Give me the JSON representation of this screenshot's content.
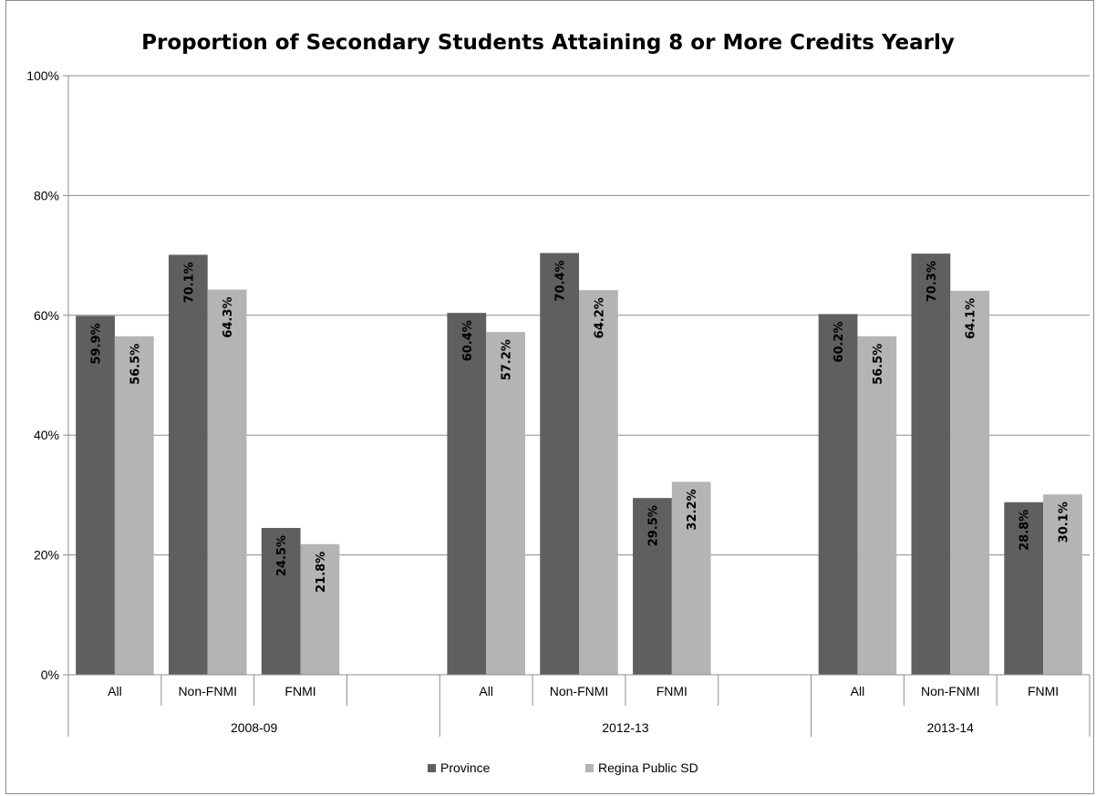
{
  "chart_data": {
    "type": "bar",
    "title": "Proportion of Secondary Students Attaining 8 or More Credits Yearly",
    "xlabel": "",
    "ylabel": "",
    "ylim": [
      0,
      100
    ],
    "y_ticks": [
      "0%",
      "20%",
      "40%",
      "60%",
      "80%",
      "100%"
    ],
    "grid": true,
    "legend_position": "bottom",
    "groups": [
      {
        "label": "2008-09",
        "categories": [
          "All",
          "Non-FNMI",
          "FNMI",
          ""
        ]
      },
      {
        "label": "2012-13",
        "categories": [
          "All",
          "Non-FNMI",
          "FNMI",
          ""
        ]
      },
      {
        "label": "2013-14",
        "categories": [
          "All",
          "Non-FNMI",
          "FNMI"
        ]
      }
    ],
    "series": [
      {
        "name": "Province",
        "color": "#5f5f5f",
        "values": [
          59.9,
          70.1,
          24.5,
          60.4,
          70.4,
          29.5,
          60.2,
          70.3,
          28.8
        ],
        "labels": [
          "59.9%",
          "70.1%",
          "24.5%",
          "60.4%",
          "70.4%",
          "29.5%",
          "60.2%",
          "70.3%",
          "28.8%"
        ]
      },
      {
        "name": "Regina Public SD",
        "color": "#b4b4b4",
        "values": [
          56.5,
          64.3,
          21.8,
          57.2,
          64.2,
          32.2,
          56.5,
          64.1,
          30.1
        ],
        "labels": [
          "56.5%",
          "64.3%",
          "21.8%",
          "57.2%",
          "64.2%",
          "32.2%",
          "56.5%",
          "64.1%",
          "30.1%"
        ]
      }
    ]
  }
}
